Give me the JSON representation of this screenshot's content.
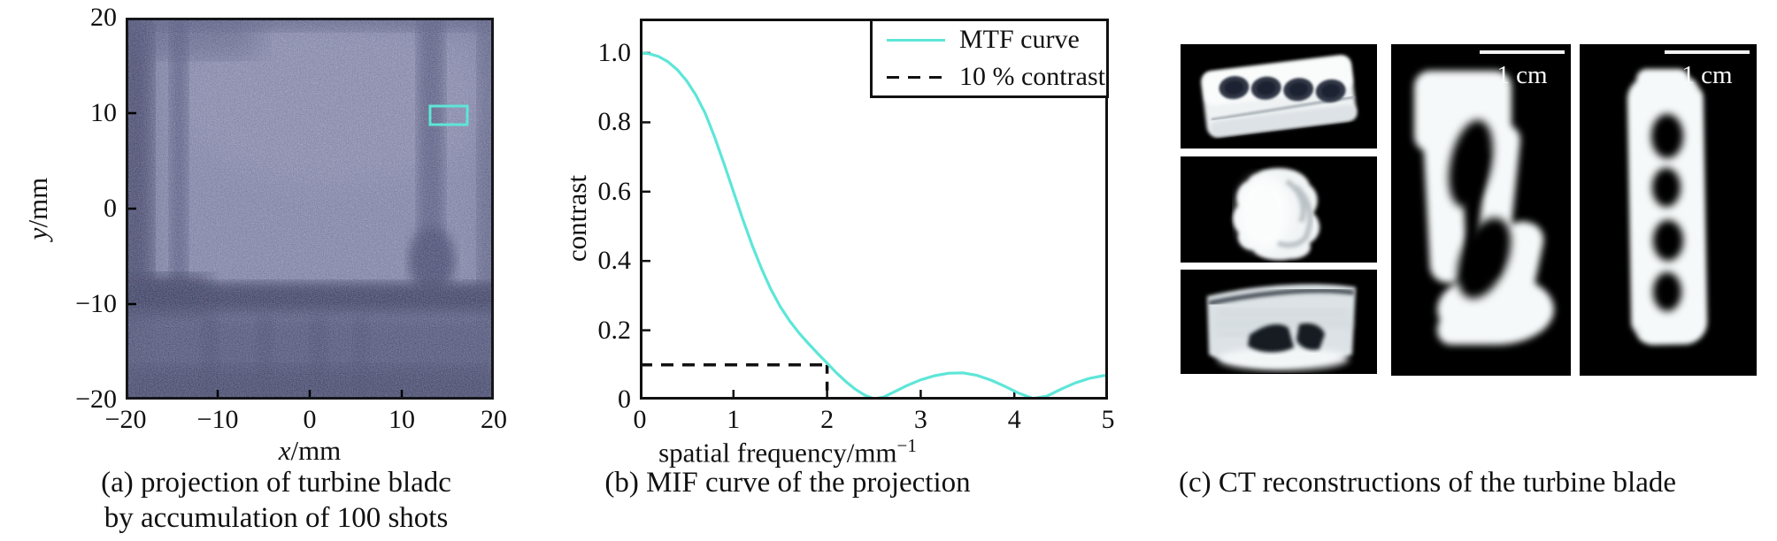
{
  "panel_a": {
    "y_axis_label": {
      "var": "y",
      "unit": "/mm"
    },
    "x_axis_label": {
      "var": "x",
      "unit": "/mm"
    },
    "y_ticks": [
      "20",
      "10",
      "0",
      "−10",
      "−20"
    ],
    "x_ticks": [
      "−20",
      "−10",
      "0",
      "10",
      "20"
    ],
    "caption_line1": "(a) projection of turbine bladc",
    "caption_line2": "by accumulation of 100 shots",
    "roi_box_color": "#5de6d8"
  },
  "panel_b": {
    "y_axis_label": "contrast",
    "x_axis_label_text": "spatial frequency/mm",
    "x_axis_label_sup": "−1",
    "y_ticks": [
      "0",
      "0.2",
      "0.4",
      "0.6",
      "0.8",
      "1.0"
    ],
    "x_ticks": [
      "0",
      "1",
      "2",
      "3",
      "4",
      "5"
    ],
    "caption": "(b) MIF curve of the projection",
    "legend": {
      "entries": [
        {
          "label": "MTF curve",
          "style": "solid",
          "color": "#5de6d8"
        },
        {
          "label": "10 % contrast",
          "style": "dashed",
          "color": "#111111"
        }
      ]
    }
  },
  "panel_c": {
    "caption": "(c) CT reconstructions of the turbine blade",
    "scale_bar_middle_label": "1 cm",
    "scale_bar_right_label": "1 cm"
  },
  "chart_data": {
    "type": "line",
    "title": "",
    "xlabel": "spatial frequency/mm^-1",
    "ylabel": "contrast",
    "xlim": [
      0,
      5
    ],
    "ylim": [
      0,
      1.1
    ],
    "x_ticks": [
      0,
      1,
      2,
      3,
      4,
      5
    ],
    "y_ticks": [
      0,
      0.2,
      0.4,
      0.6,
      0.8,
      1.0
    ],
    "grid": false,
    "legend_position": "top-right",
    "annotations": {
      "threshold_contrast": 0.1,
      "threshold_spatial_frequency": 2
    },
    "series": [
      {
        "name": "MTF curve",
        "color": "#5de6d8",
        "style": "solid",
        "points": [
          [
            0,
            1.0
          ],
          [
            0.1,
            0.998
          ],
          [
            0.2,
            0.99
          ],
          [
            0.3,
            0.975
          ],
          [
            0.4,
            0.952
          ],
          [
            0.5,
            0.92
          ],
          [
            0.6,
            0.878
          ],
          [
            0.7,
            0.825
          ],
          [
            0.8,
            0.757
          ],
          [
            0.9,
            0.68
          ],
          [
            1.0,
            0.6
          ],
          [
            1.1,
            0.52
          ],
          [
            1.2,
            0.445
          ],
          [
            1.3,
            0.378
          ],
          [
            1.4,
            0.318
          ],
          [
            1.5,
            0.268
          ],
          [
            1.6,
            0.227
          ],
          [
            1.7,
            0.192
          ],
          [
            1.8,
            0.162
          ],
          [
            1.9,
            0.133
          ],
          [
            2.0,
            0.105
          ],
          [
            2.1,
            0.077
          ],
          [
            2.2,
            0.052
          ],
          [
            2.3,
            0.03
          ],
          [
            2.4,
            0.013
          ],
          [
            2.5,
            0.002
          ],
          [
            2.6,
            0.007
          ],
          [
            2.7,
            0.02
          ],
          [
            2.85,
            0.04
          ],
          [
            3.0,
            0.057
          ],
          [
            3.15,
            0.069
          ],
          [
            3.3,
            0.076
          ],
          [
            3.45,
            0.077
          ],
          [
            3.6,
            0.07
          ],
          [
            3.75,
            0.056
          ],
          [
            3.9,
            0.038
          ],
          [
            4.05,
            0.018
          ],
          [
            4.2,
            0.003
          ],
          [
            4.35,
            0.01
          ],
          [
            4.5,
            0.03
          ],
          [
            4.65,
            0.048
          ],
          [
            4.8,
            0.061
          ],
          [
            4.95,
            0.069
          ],
          [
            5.0,
            0.07
          ]
        ]
      },
      {
        "name": "10 % contrast",
        "color": "#111111",
        "style": "dashed",
        "points": [
          [
            0,
            0.1
          ],
          [
            2,
            0.1
          ],
          [
            2,
            0
          ]
        ]
      }
    ]
  }
}
